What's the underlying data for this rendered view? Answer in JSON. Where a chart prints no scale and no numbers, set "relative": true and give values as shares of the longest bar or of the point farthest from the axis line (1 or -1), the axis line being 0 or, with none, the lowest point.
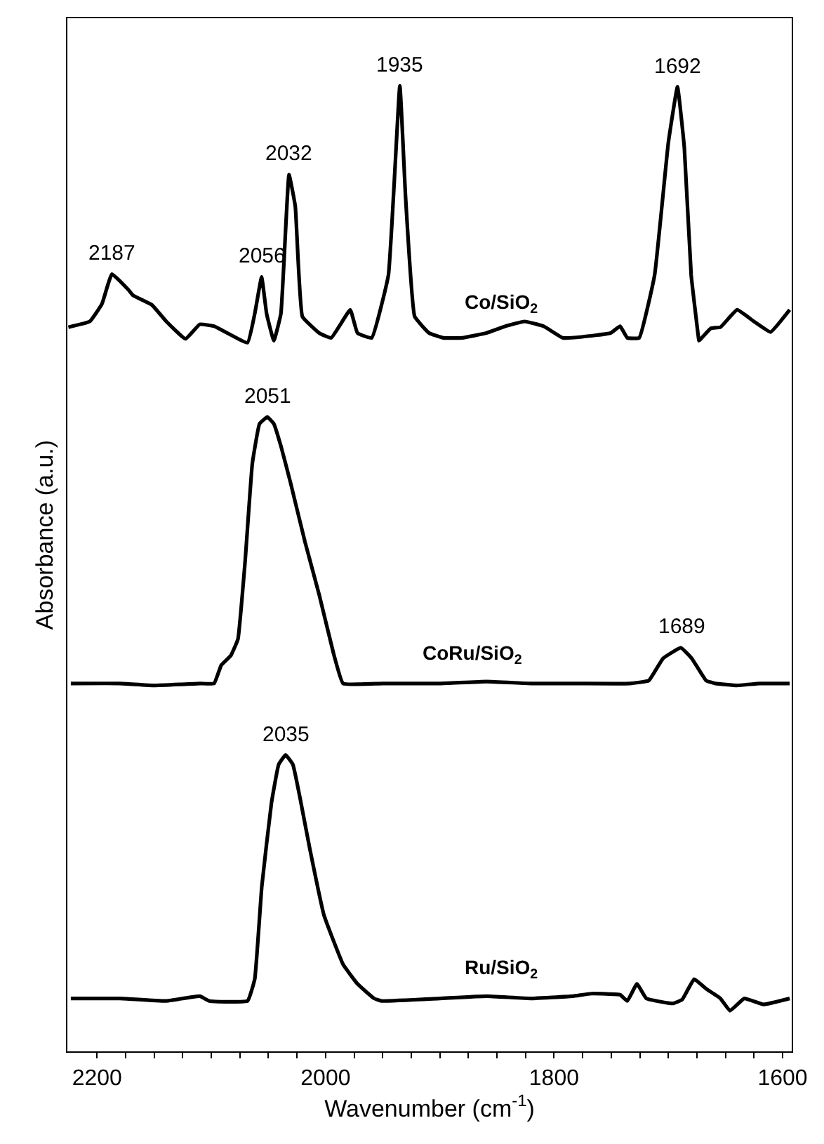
{
  "chart_data": {
    "type": "line",
    "relative": true,
    "xlabel": "Wavenumber (cm$^{-1}$)",
    "ylabel": "Absorbance (a.u.)",
    "xlim": [
      2226,
      1592
    ],
    "xticks": [
      {
        "value": 2175,
        "label": null
      },
      {
        "value": 2150,
        "label": null
      },
      {
        "value": 2125,
        "label": null
      },
      {
        "value": 2100,
        "label": null
      },
      {
        "value": 2075,
        "label": null
      },
      {
        "value": 2050,
        "label": null
      },
      {
        "value": 2025,
        "label": null
      },
      {
        "value": 1975,
        "label": null
      },
      {
        "value": 1950,
        "label": null
      },
      {
        "value": 1925,
        "label": null
      },
      {
        "value": 1900,
        "label": null
      },
      {
        "value": 1875,
        "label": null
      },
      {
        "value": 1850,
        "label": null
      },
      {
        "value": 1825,
        "label": null
      },
      {
        "value": 1775,
        "label": null
      },
      {
        "value": 1750,
        "label": null
      },
      {
        "value": 1725,
        "label": null
      },
      {
        "value": 1700,
        "label": null
      },
      {
        "value": 1675,
        "label": null
      },
      {
        "value": 1650,
        "label": null
      },
      {
        "value": 1625,
        "label": null
      },
      2200,
      2000,
      1800,
      1600
    ],
    "tick_labels": "x",
    "legend": false,
    "marker": "none",
    "line_style": "solid",
    "series": [
      {
        "name": "Co/SiO$_{2}$",
        "color": "#000000",
        "x": [
          2225.1,
          2206.3,
          2195.8,
          2187,
          2172.8,
          2168.6,
          2151.9,
          2139.4,
          2122.6,
          2110.1,
          2097.6,
          2068.3,
          2062.0,
          2056,
          2051.6,
          2045.3,
          2039.1,
          2032,
          2026.5,
          2020.3,
          2005.6,
          1995.1,
          1978.4,
          1972.1,
          1959.6,
          1945,
          1935,
          1930,
          1922,
          1909.4,
          1896.9,
          1880.2,
          1859.2,
          1842.5,
          1825.8,
          1809.1,
          1792.4,
          1775.6,
          1750.5,
          1742.2,
          1735.9,
          1725.5,
          1712,
          1700,
          1692,
          1686,
          1680,
          1673.6,
          1673.2,
          1662.7,
          1654.4,
          1639.8,
          1625.1,
          1610.5,
          1593.8
        ],
        "values": [
          0.75,
          0.756,
          0.774,
          0.805,
          0.789,
          0.783,
          0.773,
          0.756,
          0.738,
          0.753,
          0.751,
          0.734,
          0.764,
          0.802,
          0.764,
          0.736,
          0.764,
          0.908,
          0.875,
          0.761,
          0.744,
          0.739,
          0.768,
          0.744,
          0.739,
          0.804,
          1.0,
          0.885,
          0.761,
          0.744,
          0.739,
          0.739,
          0.744,
          0.751,
          0.756,
          0.751,
          0.739,
          0.74,
          0.744,
          0.751,
          0.739,
          0.739,
          0.804,
          0.941,
          0.999,
          0.936,
          0.804,
          0.739,
          0.736,
          0.749,
          0.75,
          0.768,
          0.756,
          0.745,
          0.768
        ]
      },
      {
        "name": "CoRu/SiO$_{2}$",
        "color": "#000000",
        "x": [
          2223,
          2180,
          2150,
          2110,
          2097.6,
          2091.3,
          2082.9,
          2076.7,
          2070.4,
          2064.1,
          2057.8,
          2051,
          2045.3,
          2039.1,
          2030.7,
          2018.1,
          2005.6,
          1993.0,
          1984.7,
          1950,
          1900,
          1859.2,
          1820,
          1780,
          1733.8,
          1717.1,
          1704.6,
          1689,
          1679.5,
          1666.9,
          1658.6,
          1640,
          1620,
          1593.8
        ],
        "values": [
          0.381,
          0.381,
          0.379,
          0.381,
          0.381,
          0.4,
          0.41,
          0.427,
          0.508,
          0.609,
          0.65,
          0.657,
          0.65,
          0.627,
          0.589,
          0.528,
          0.473,
          0.412,
          0.381,
          0.381,
          0.381,
          0.383,
          0.381,
          0.381,
          0.381,
          0.384,
          0.407,
          0.418,
          0.407,
          0.384,
          0.381,
          0.379,
          0.381,
          0.381
        ]
      },
      {
        "name": "Ru/SiO$_{2}$",
        "color": "#000000",
        "x": [
          2223,
          2180,
          2140,
          2110.1,
          2101.7,
          2068.3,
          2062.0,
          2055.8,
          2047.4,
          2041.1,
          2035,
          2028.6,
          2022.3,
          2014.0,
          2001.4,
          1984.7,
          1972.1,
          1957.5,
          1951.2,
          1900,
          1859.2,
          1820,
          1784.0,
          1767.3,
          1742.2,
          1735.9,
          1727.5,
          1719.2,
          1696.2,
          1687.8,
          1677.4,
          1666.9,
          1654.4,
          1646.0,
          1633.5,
          1616.7,
          1593.8
        ],
        "values": [
          0.0548,
          0.0548,
          0.0522,
          0.0571,
          0.0522,
          0.0522,
          0.0748,
          0.171,
          0.257,
          0.297,
          0.307,
          0.297,
          0.262,
          0.211,
          0.141,
          0.0901,
          0.0699,
          0.0548,
          0.0522,
          0.0548,
          0.0571,
          0.0548,
          0.0571,
          0.0598,
          0.0587,
          0.0522,
          0.0699,
          0.0548,
          0.0496,
          0.0537,
          0.0748,
          0.0648,
          0.0548,
          0.0421,
          0.0548,
          0.0486,
          0.0548
        ]
      }
    ],
    "annotations": [
      {
        "text": "2187",
        "x": 2187,
        "y": 0.805
      },
      {
        "text": "2056",
        "x": 2056,
        "y": 0.802
      },
      {
        "text": "2032",
        "x": 2032,
        "y": 0.908
      },
      {
        "text": "1935",
        "x": 1935,
        "y": 1.0
      },
      {
        "text": "1692",
        "x": 1692,
        "y": 0.999
      },
      {
        "text": "2051",
        "x": 2051,
        "y": 0.657
      },
      {
        "text": "1689",
        "x": 1689,
        "y": 0.418
      },
      {
        "text": "2035",
        "x": 2035,
        "y": 0.307
      }
    ]
  }
}
